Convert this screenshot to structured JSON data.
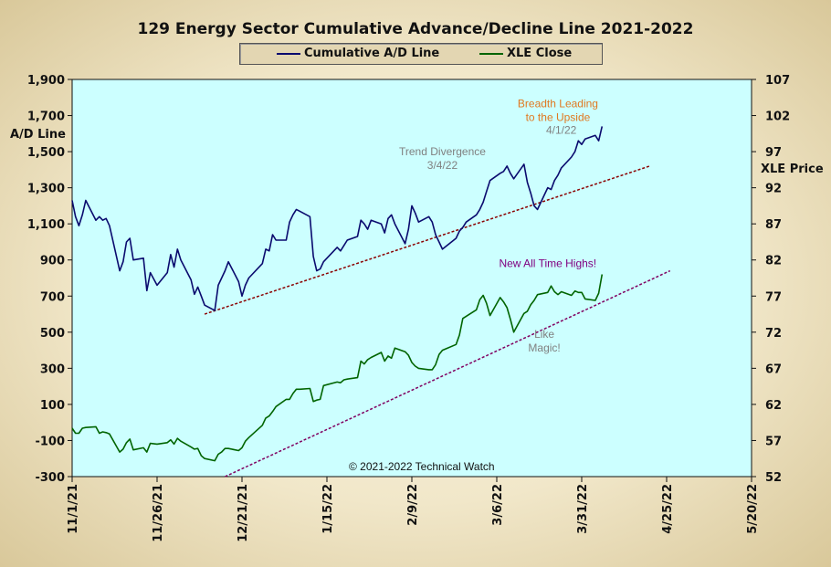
{
  "chart_data": {
    "type": "line",
    "title": "129 Energy Sector Cumulative Advance/Decline Line 2021-2022",
    "ylabel_left": "A/D Line",
    "ylabel_right": "XLE Price",
    "ylim_left": [
      -300,
      1900
    ],
    "ylim_right": [
      52,
      107
    ],
    "yticks_left": [
      -300,
      -100,
      100,
      300,
      500,
      700,
      900,
      1100,
      1300,
      1500,
      1700,
      1900
    ],
    "yticks_left_labels": [
      "-300",
      "-100",
      "100",
      "300",
      "500",
      "700",
      "900",
      "1,100",
      "1,300",
      "1,500",
      "1,700",
      "1,900"
    ],
    "yticks_right": [
      52,
      57,
      62,
      67,
      72,
      77,
      82,
      87,
      92,
      97,
      102,
      107
    ],
    "yticks_right_labels": [
      "52",
      "57",
      "62",
      "67",
      "72",
      "77",
      "82",
      "87",
      "92",
      "97",
      "102",
      "107"
    ],
    "x_range": [
      "2021-11-01",
      "2022-05-20"
    ],
    "x_ticks": [
      "2021-11-01",
      "2021-11-26",
      "2021-12-21",
      "2022-01-15",
      "2022-02-09",
      "2022-03-06",
      "2022-03-31",
      "2022-04-25",
      "2022-05-20"
    ],
    "x_tick_labels": [
      "11/1/21",
      "11/26/21",
      "12/21/21",
      "1/15/22",
      "2/9/22",
      "3/6/22",
      "3/31/22",
      "4/25/22",
      "5/20/22"
    ],
    "legend_position": "top-center",
    "grid": false,
    "copyright": "© 2021-2022  Technical Watch",
    "series": [
      {
        "name": "Cumulative A/D Line",
        "axis": "left",
        "color": "#0a0a6e",
        "x": [
          "2021-11-01",
          "2021-11-02",
          "2021-11-03",
          "2021-11-04",
          "2021-11-05",
          "2021-11-08",
          "2021-11-09",
          "2021-11-10",
          "2021-11-11",
          "2021-11-12",
          "2021-11-15",
          "2021-11-16",
          "2021-11-17",
          "2021-11-18",
          "2021-11-19",
          "2021-11-22",
          "2021-11-23",
          "2021-11-24",
          "2021-11-26",
          "2021-11-29",
          "2021-11-30",
          "2021-12-01",
          "2021-12-02",
          "2021-12-03",
          "2021-12-06",
          "2021-12-07",
          "2021-12-08",
          "2021-12-09",
          "2021-12-10",
          "2021-12-13",
          "2021-12-14",
          "2021-12-15",
          "2021-12-16",
          "2021-12-17",
          "2021-12-20",
          "2021-12-21",
          "2021-12-22",
          "2021-12-23",
          "2021-12-27",
          "2021-12-28",
          "2021-12-29",
          "2021-12-30",
          "2021-12-31",
          "2022-01-03",
          "2022-01-04",
          "2022-01-05",
          "2022-01-06",
          "2022-01-07",
          "2022-01-10",
          "2022-01-11",
          "2022-01-12",
          "2022-01-13",
          "2022-01-14",
          "2022-01-18",
          "2022-01-19",
          "2022-01-20",
          "2022-01-21",
          "2022-01-24",
          "2022-01-25",
          "2022-01-26",
          "2022-01-27",
          "2022-01-28",
          "2022-01-31",
          "2022-02-01",
          "2022-02-02",
          "2022-02-03",
          "2022-02-04",
          "2022-02-07",
          "2022-02-08",
          "2022-02-09",
          "2022-02-10",
          "2022-02-11",
          "2022-02-14",
          "2022-02-15",
          "2022-02-16",
          "2022-02-17",
          "2022-02-18",
          "2022-02-22",
          "2022-02-23",
          "2022-02-24",
          "2022-02-25",
          "2022-02-28",
          "2022-03-01",
          "2022-03-02",
          "2022-03-03",
          "2022-03-04",
          "2022-03-07",
          "2022-03-08",
          "2022-03-09",
          "2022-03-10",
          "2022-03-11",
          "2022-03-14",
          "2022-03-15",
          "2022-03-16",
          "2022-03-17",
          "2022-03-18",
          "2022-03-21",
          "2022-03-22",
          "2022-03-23",
          "2022-03-24",
          "2022-03-25",
          "2022-03-28",
          "2022-03-29",
          "2022-03-30",
          "2022-03-31",
          "2022-04-01",
          "2022-04-04",
          "2022-04-05",
          "2022-04-06"
        ],
        "values": [
          1230,
          1140,
          1090,
          1150,
          1230,
          1120,
          1140,
          1120,
          1130,
          1090,
          840,
          890,
          1000,
          1020,
          900,
          910,
          730,
          830,
          760,
          830,
          930,
          860,
          960,
          900,
          790,
          710,
          750,
          700,
          650,
          620,
          760,
          800,
          840,
          890,
          780,
          700,
          760,
          800,
          880,
          960,
          950,
          1040,
          1010,
          1010,
          1110,
          1150,
          1180,
          1170,
          1140,
          920,
          840,
          850,
          890,
          970,
          950,
          980,
          1010,
          1030,
          1120,
          1100,
          1070,
          1120,
          1100,
          1050,
          1130,
          1150,
          1100,
          990,
          1070,
          1200,
          1160,
          1110,
          1140,
          1110,
          1040,
          1000,
          960,
          1020,
          1060,
          1080,
          1110,
          1150,
          1180,
          1220,
          1280,
          1340,
          1380,
          1390,
          1420,
          1380,
          1350,
          1430,
          1330,
          1270,
          1200,
          1180,
          1300,
          1290,
          1340,
          1370,
          1410,
          1470,
          1500,
          1560,
          1540,
          1570,
          1590,
          1560,
          1640
        ]
      },
      {
        "name": "XLE Close",
        "axis": "right",
        "color": "#006400",
        "x": [
          "2021-11-01",
          "2021-11-02",
          "2021-11-03",
          "2021-11-04",
          "2021-11-05",
          "2021-11-08",
          "2021-11-09",
          "2021-11-10",
          "2021-11-11",
          "2021-11-12",
          "2021-11-15",
          "2021-11-16",
          "2021-11-17",
          "2021-11-18",
          "2021-11-19",
          "2021-11-22",
          "2021-11-23",
          "2021-11-24",
          "2021-11-26",
          "2021-11-29",
          "2021-11-30",
          "2021-12-01",
          "2021-12-02",
          "2021-12-03",
          "2021-12-06",
          "2021-12-07",
          "2021-12-08",
          "2021-12-09",
          "2021-12-10",
          "2021-12-13",
          "2021-12-14",
          "2021-12-15",
          "2021-12-16",
          "2021-12-17",
          "2021-12-20",
          "2021-12-21",
          "2021-12-22",
          "2021-12-23",
          "2021-12-27",
          "2021-12-28",
          "2021-12-29",
          "2021-12-30",
          "2021-12-31",
          "2022-01-03",
          "2022-01-04",
          "2022-01-05",
          "2022-01-06",
          "2022-01-07",
          "2022-01-10",
          "2022-01-11",
          "2022-01-12",
          "2022-01-13",
          "2022-01-14",
          "2022-01-18",
          "2022-01-19",
          "2022-01-20",
          "2022-01-21",
          "2022-01-24",
          "2022-01-25",
          "2022-01-26",
          "2022-01-27",
          "2022-01-28",
          "2022-01-31",
          "2022-02-01",
          "2022-02-02",
          "2022-02-03",
          "2022-02-04",
          "2022-02-07",
          "2022-02-08",
          "2022-02-09",
          "2022-02-10",
          "2022-02-11",
          "2022-02-14",
          "2022-02-15",
          "2022-02-16",
          "2022-02-17",
          "2022-02-18",
          "2022-02-22",
          "2022-02-23",
          "2022-02-24",
          "2022-02-25",
          "2022-02-28",
          "2022-03-01",
          "2022-03-02",
          "2022-03-03",
          "2022-03-04",
          "2022-03-07",
          "2022-03-08",
          "2022-03-09",
          "2022-03-10",
          "2022-03-11",
          "2022-03-14",
          "2022-03-15",
          "2022-03-16",
          "2022-03-17",
          "2022-03-18",
          "2022-03-21",
          "2022-03-22",
          "2022-03-23",
          "2022-03-24",
          "2022-03-25",
          "2022-03-28",
          "2022-03-29",
          "2022-03-30",
          "2022-03-31",
          "2022-04-01",
          "2022-04-04",
          "2022-04-05",
          "2022-04-06"
        ],
        "values": [
          58.7,
          58.0,
          58.0,
          58.7,
          58.8,
          58.9,
          58.0,
          58.2,
          58.1,
          57.9,
          55.4,
          55.8,
          56.7,
          57.2,
          55.7,
          56.0,
          55.4,
          56.6,
          56.5,
          56.7,
          57.1,
          56.5,
          57.3,
          56.9,
          56.1,
          55.8,
          55.9,
          54.9,
          54.5,
          54.2,
          55.1,
          55.4,
          55.9,
          55.9,
          55.6,
          56.0,
          56.9,
          57.4,
          59.1,
          60.1,
          60.4,
          61.0,
          61.7,
          62.7,
          62.7,
          63.5,
          64.1,
          64.1,
          64.2,
          62.4,
          62.6,
          62.7,
          64.6,
          65.1,
          65.0,
          65.4,
          65.5,
          65.7,
          68.0,
          67.6,
          68.2,
          68.5,
          69.2,
          68.0,
          68.7,
          68.4,
          69.8,
          69.3,
          68.8,
          67.8,
          67.3,
          67.0,
          66.8,
          66.8,
          67.5,
          68.9,
          69.5,
          70.3,
          71.6,
          73.9,
          74.2,
          75.1,
          76.5,
          77.1,
          76.0,
          74.3,
          76.8,
          76.2,
          75.4,
          73.8,
          72.0,
          74.6,
          74.9,
          75.8,
          76.4,
          77.2,
          77.5,
          78.4,
          77.6,
          77.2,
          77.6,
          77.1,
          77.7,
          77.5,
          77.5,
          76.6,
          76.4,
          77.4,
          80.0
        ]
      }
    ],
    "trendlines": [
      {
        "name": "ad-trendline",
        "axis": "left",
        "from": [
          "2021-12-10",
          600
        ],
        "to": [
          "2022-04-20",
          1420
        ],
        "color": "#8b0000"
      },
      {
        "name": "xle-trendline",
        "axis": "right",
        "from": [
          "2021-12-16",
          52
        ],
        "to": [
          "2022-04-26",
          80.5
        ],
        "color": "#800060"
      }
    ],
    "annotations": [
      {
        "name": "annot-trend-divergence",
        "lines": [
          "Trend  Divergence",
          "3/4/22"
        ],
        "color": "#808080"
      },
      {
        "name": "annot-breadth-leading",
        "lines": [
          "Breadth  Leading",
          "to the Upside"
        ],
        "color": "#e07820"
      },
      {
        "name": "annot-breadth-date",
        "lines": [
          "4/1/22"
        ],
        "color": "#808080"
      },
      {
        "name": "annot-new-highs",
        "lines": [
          "New  All Time Highs!"
        ],
        "color": "#800080"
      },
      {
        "name": "annot-like-magic",
        "lines": [
          "Like",
          "Magic!"
        ],
        "color": "#808080"
      }
    ]
  }
}
